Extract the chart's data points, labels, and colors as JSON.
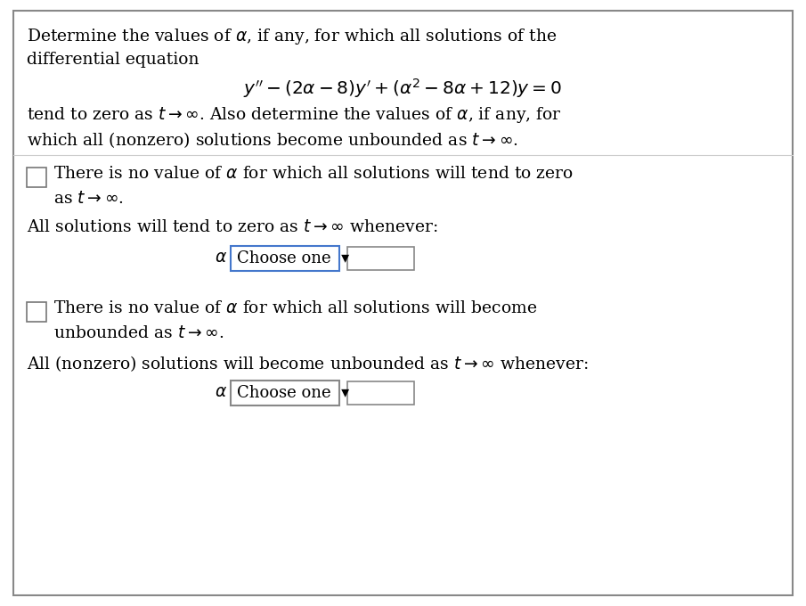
{
  "bg_color": "#ffffff",
  "border_color": "#888888",
  "line1": "Determine the values of $\\alpha$, if any, for which all solutions of the",
  "line2": "differential equation",
  "equation": "$y^{\\prime\\prime} - (2\\alpha - 8)y^{\\prime} + (\\alpha^2 - 8\\alpha + 12)y = 0$",
  "line3": "tend to zero as $t \\rightarrow \\infty$. Also determine the values of $\\alpha$, if any, for",
  "line4": "which all (nonzero) solutions become unbounded as $t \\rightarrow \\infty$.",
  "cb1_line1": "There is no value of $\\alpha$ for which all solutions will tend to zero",
  "cb1_line2": "as $t \\rightarrow \\infty$.",
  "allsol1": "All solutions will tend to zero as $t \\rightarrow \\infty$ whenever:",
  "alpha1": "$\\alpha$",
  "choose1": "Choose one  ▾",
  "cb2_line1": "There is no value of $\\alpha$ for which all solutions will become",
  "cb2_line2": "unbounded as $t \\rightarrow \\infty$.",
  "allsol2": "All (nonzero) solutions will become unbounded as $t \\rightarrow \\infty$ whenever:",
  "alpha2": "$\\alpha$",
  "choose2": "Choose one  ▾",
  "fs": 13.5,
  "fs_eq": 14.5
}
